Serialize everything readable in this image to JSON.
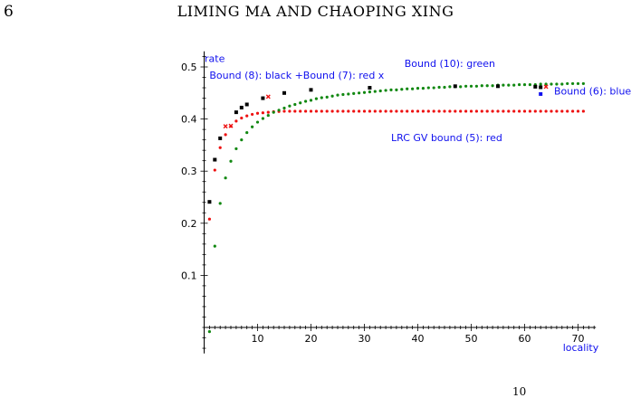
{
  "header": {
    "page_number": "6",
    "running_head": "LIMING MA AND CHAOPING XING"
  },
  "footer": {
    "mark": "10"
  },
  "chart_data": {
    "type": "scatter",
    "xlabel": "locality",
    "ylabel": "rate",
    "xlim": [
      0,
      73
    ],
    "ylim": [
      -0.05,
      0.53
    ],
    "xticks": [
      10,
      20,
      30,
      40,
      50,
      60,
      70
    ],
    "yticks": [
      0.1,
      0.2,
      0.3,
      0.4,
      0.5
    ],
    "grid": false,
    "label_color": "#1010ee",
    "annotations": [
      {
        "text": "Bound (8): black +Bound (7): red x",
        "x": 1,
        "y": 0.477
      },
      {
        "text": "Bound (10): green",
        "x": 37.5,
        "y": 0.5
      },
      {
        "text": "Bound (6): blue",
        "x": 65.5,
        "y": 0.447
      },
      {
        "text": "LRC GV bound (5): red",
        "x": 35,
        "y": 0.358
      }
    ],
    "series": [
      {
        "key": "gv",
        "marker": "dot",
        "color": "#ee1111",
        "x": [
          1,
          2,
          3,
          4,
          5,
          6,
          7,
          8,
          9,
          10,
          11,
          12,
          13,
          14,
          15,
          16,
          17,
          18,
          19,
          20,
          21,
          22,
          23,
          24,
          25,
          26,
          27,
          28,
          29,
          30,
          31,
          32,
          33,
          34,
          35,
          36,
          37,
          38,
          39,
          40,
          41,
          42,
          43,
          44,
          45,
          46,
          47,
          48,
          49,
          50,
          51,
          52,
          53,
          54,
          55,
          56,
          57,
          58,
          59,
          60,
          61,
          62,
          63,
          64,
          65,
          66,
          67,
          68,
          69,
          70,
          71
        ],
        "y": [
          0.208,
          0.302,
          0.345,
          0.37,
          0.386,
          0.396,
          0.402,
          0.406,
          0.409,
          0.411,
          0.412,
          0.413,
          0.414,
          0.4145,
          0.415,
          0.415,
          0.415,
          0.415,
          0.415,
          0.415,
          0.415,
          0.415,
          0.415,
          0.415,
          0.415,
          0.415,
          0.415,
          0.415,
          0.415,
          0.415,
          0.415,
          0.415,
          0.415,
          0.415,
          0.415,
          0.415,
          0.415,
          0.415,
          0.415,
          0.415,
          0.415,
          0.415,
          0.415,
          0.415,
          0.415,
          0.415,
          0.415,
          0.415,
          0.415,
          0.415,
          0.415,
          0.415,
          0.415,
          0.415,
          0.415,
          0.415,
          0.415,
          0.415,
          0.415,
          0.415,
          0.415,
          0.415,
          0.415,
          0.415,
          0.415,
          0.415,
          0.415,
          0.415,
          0.415,
          0.415,
          0.415
        ]
      },
      {
        "key": "bound10",
        "marker": "dot",
        "color": "#118811",
        "x": [
          1,
          2,
          3,
          4,
          5,
          6,
          7,
          8,
          9,
          10,
          11,
          12,
          13,
          14,
          15,
          16,
          17,
          18,
          19,
          20,
          21,
          22,
          23,
          24,
          25,
          26,
          27,
          28,
          29,
          30,
          31,
          32,
          33,
          34,
          35,
          36,
          37,
          38,
          39,
          40,
          41,
          42,
          43,
          44,
          45,
          46,
          47,
          48,
          49,
          50,
          51,
          52,
          53,
          54,
          55,
          56,
          57,
          58,
          59,
          60,
          61,
          62,
          63,
          64,
          65,
          66,
          67,
          68,
          69,
          70,
          71
        ],
        "y": [
          -0.008,
          0.156,
          0.238,
          0.287,
          0.319,
          0.343,
          0.36,
          0.374,
          0.385,
          0.394,
          0.401,
          0.407,
          0.413,
          0.417,
          0.421,
          0.425,
          0.428,
          0.431,
          0.434,
          0.436,
          0.439,
          0.441,
          0.442,
          0.444,
          0.446,
          0.447,
          0.448,
          0.449,
          0.45,
          0.451,
          0.452,
          0.453,
          0.454,
          0.455,
          0.456,
          0.456,
          0.457,
          0.458,
          0.458,
          0.459,
          0.459,
          0.46,
          0.46,
          0.461,
          0.461,
          0.462,
          0.462,
          0.462,
          0.463,
          0.463,
          0.463,
          0.464,
          0.464,
          0.464,
          0.465,
          0.465,
          0.465,
          0.465,
          0.466,
          0.466,
          0.466,
          0.466,
          0.467,
          0.467,
          0.467,
          0.467,
          0.467,
          0.468,
          0.468,
          0.468,
          0.468
        ]
      },
      {
        "key": "bound8",
        "marker": "square",
        "color": "#000000",
        "x": [
          1,
          2,
          3,
          6,
          7,
          8,
          11,
          15,
          20,
          31,
          47,
          55,
          62,
          63
        ],
        "y": [
          0.241,
          0.322,
          0.363,
          0.413,
          0.422,
          0.428,
          0.44,
          0.45,
          0.456,
          0.46,
          0.463,
          0.463,
          0.462,
          0.461
        ]
      },
      {
        "key": "bound7",
        "marker": "x",
        "color": "#ee1111",
        "x": [
          4,
          5,
          12,
          64
        ],
        "y": [
          0.386,
          0.387,
          0.443,
          0.462
        ]
      },
      {
        "key": "bound6",
        "marker": "square",
        "color": "#1010ee",
        "x": [
          63
        ],
        "y": [
          0.448
        ]
      }
    ]
  }
}
